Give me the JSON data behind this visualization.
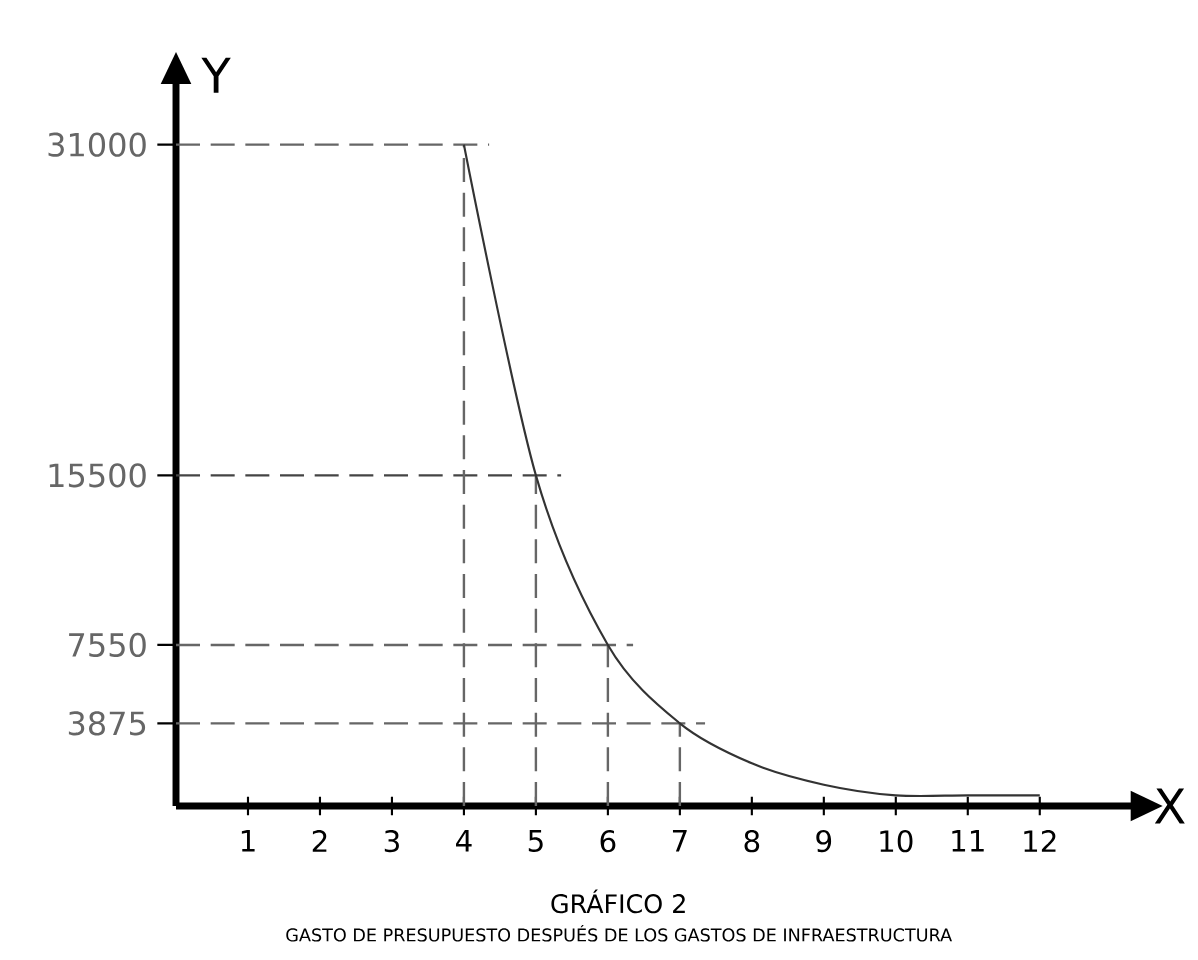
{
  "chart_data": {
    "type": "line",
    "title": "GRÁFICO 2",
    "subtitle": "GASTO DE PRESUPUESTO DESPUÉS DE LOS GASTOS DE INFRAESTRUCTURA",
    "xlabel": "X",
    "ylabel": "Y",
    "x": [
      4,
      5,
      6,
      7,
      8,
      9,
      10,
      11,
      12
    ],
    "values": [
      31000,
      15500,
      7550,
      3875,
      2000,
      1000,
      500,
      500,
      500
    ],
    "color": "#333333",
    "marker": "none",
    "line_style": "solid",
    "xlim": [
      0,
      13.3
    ],
    "ylim": [
      0,
      34000
    ],
    "xticks": [
      1,
      2,
      3,
      4,
      5,
      6,
      7,
      8,
      9,
      10,
      11,
      12
    ],
    "yticks": [
      3875,
      7550,
      15500,
      31000
    ],
    "ref_lines": [
      {
        "axis": "y",
        "value": 31000,
        "color": "#666666",
        "line_style": "dashed"
      },
      {
        "axis": "y",
        "value": 15500,
        "color": "#444444",
        "line_style": "dashed"
      },
      {
        "axis": "y",
        "value": 7550,
        "color": "#666666",
        "line_style": "dashed"
      },
      {
        "axis": "y",
        "value": 3875,
        "color": "#666666",
        "line_style": "dashed"
      },
      {
        "axis": "x",
        "value": 4,
        "color": "#666666",
        "line_style": "dashed"
      },
      {
        "axis": "x",
        "value": 5,
        "color": "#666666",
        "line_style": "dashed"
      },
      {
        "axis": "x",
        "value": 6,
        "color": "#666666",
        "line_style": "dashed"
      },
      {
        "axis": "x",
        "value": 7,
        "color": "#666666",
        "line_style": "dashed"
      }
    ]
  }
}
